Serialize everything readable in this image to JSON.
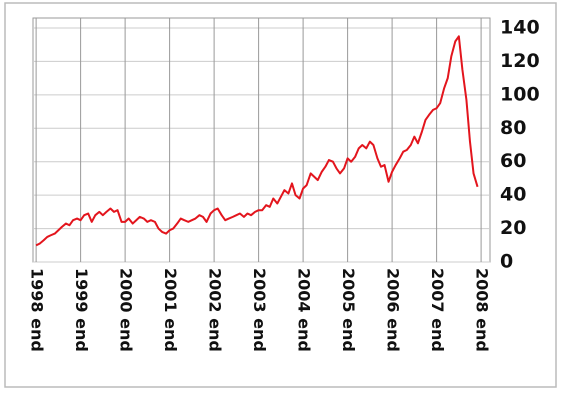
{
  "chart_data": {
    "type": "line",
    "x": [
      1999,
      1999.08,
      1999.17,
      1999.25,
      1999.33,
      1999.42,
      1999.5,
      1999.58,
      1999.67,
      1999.75,
      1999.83,
      1999.92,
      2000,
      2000.08,
      2000.17,
      2000.25,
      2000.33,
      2000.42,
      2000.5,
      2000.58,
      2000.67,
      2000.75,
      2000.83,
      2000.92,
      2001,
      2001.08,
      2001.17,
      2001.25,
      2001.33,
      2001.42,
      2001.5,
      2001.58,
      2001.67,
      2001.75,
      2001.83,
      2001.92,
      2002,
      2002.08,
      2002.17,
      2002.25,
      2002.33,
      2002.42,
      2002.5,
      2002.58,
      2002.67,
      2002.75,
      2002.83,
      2002.92,
      2003,
      2003.08,
      2003.17,
      2003.25,
      2003.33,
      2003.42,
      2003.5,
      2003.58,
      2003.67,
      2003.75,
      2003.83,
      2003.92,
      2004,
      2004.08,
      2004.17,
      2004.25,
      2004.33,
      2004.42,
      2004.5,
      2004.58,
      2004.67,
      2004.75,
      2004.83,
      2004.92,
      2005,
      2005.08,
      2005.17,
      2005.25,
      2005.33,
      2005.42,
      2005.5,
      2005.58,
      2005.67,
      2005.75,
      2005.83,
      2005.92,
      2006,
      2006.08,
      2006.17,
      2006.25,
      2006.33,
      2006.42,
      2006.5,
      2006.58,
      2006.67,
      2006.75,
      2006.83,
      2006.92,
      2007,
      2007.08,
      2007.17,
      2007.25,
      2007.33,
      2007.42,
      2007.5,
      2007.58,
      2007.67,
      2007.75,
      2007.83,
      2007.92,
      2008,
      2008.08,
      2008.17,
      2008.25,
      2008.33,
      2008.42,
      2008.5,
      2008.58,
      2008.67,
      2008.75,
      2008.83,
      2008.92
    ],
    "series": [
      {
        "color": "#e3151d",
        "values": [
          10,
          11,
          13,
          15,
          16,
          17,
          19,
          21,
          23,
          22,
          25,
          26,
          25,
          28,
          29,
          24,
          28,
          30,
          28,
          30,
          32,
          30,
          31,
          24,
          24,
          26,
          23,
          25,
          27,
          26,
          24,
          25,
          24,
          20,
          18,
          17,
          19,
          20,
          23,
          26,
          25,
          24,
          25,
          26,
          28,
          27,
          24,
          29,
          31,
          32,
          28,
          25,
          26,
          27,
          28,
          29,
          27,
          29,
          28,
          30,
          31,
          31,
          34,
          33,
          38,
          35,
          39,
          43,
          41,
          47,
          40,
          38,
          44,
          46,
          53,
          51,
          49,
          54,
          57,
          61,
          60,
          56,
          53,
          56,
          62,
          60,
          63,
          68,
          70,
          68,
          72,
          70,
          62,
          57,
          58,
          48,
          54,
          58,
          62,
          66,
          67,
          70,
          75,
          71,
          78,
          85,
          88,
          91,
          92,
          95,
          104,
          110,
          123,
          132,
          135,
          115,
          97,
          72,
          53,
          45
        ]
      }
    ],
    "xlim": [
      1998.93,
      2009.2
    ],
    "xticks": [
      {
        "value": 1999,
        "label": "1998 end"
      },
      {
        "value": 2000,
        "label": "1999 end"
      },
      {
        "value": 2001,
        "label": "2000 end"
      },
      {
        "value": 2002,
        "label": "2001 end"
      },
      {
        "value": 2003,
        "label": "2002 end"
      },
      {
        "value": 2004,
        "label": "2003 end"
      },
      {
        "value": 2005,
        "label": "2004 end"
      },
      {
        "value": 2006,
        "label": "2005 end"
      },
      {
        "value": 2007,
        "label": "2006 end"
      },
      {
        "value": 2008,
        "label": "2007 end"
      },
      {
        "value": 2009,
        "label": "2008 end"
      }
    ],
    "ylim": [
      0,
      140
    ],
    "yticks": [
      0,
      20,
      40,
      60,
      80,
      100,
      120,
      140
    ],
    "grid": true
  }
}
